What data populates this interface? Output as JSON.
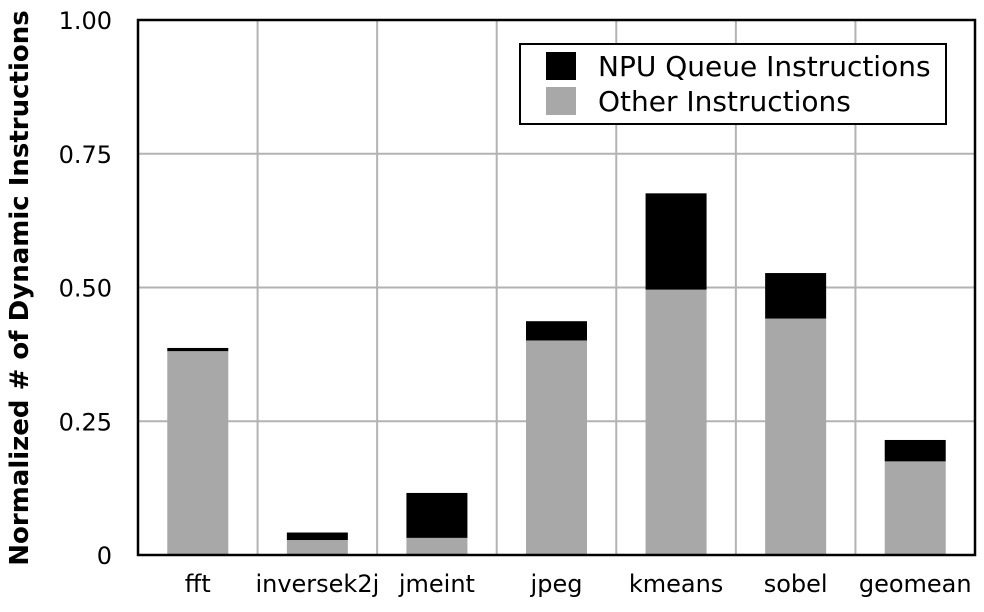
{
  "chart_data": {
    "type": "bar",
    "stacked": true,
    "categories": [
      "fft",
      "inversek2j",
      "jmeint",
      "jpeg",
      "kmeans",
      "sobel",
      "geomean"
    ],
    "series": [
      {
        "name": "Other Instructions",
        "values": [
          0.381,
          0.028,
          0.032,
          0.401,
          0.496,
          0.442,
          0.175
        ],
        "color": "#a8a8a8"
      },
      {
        "name": "NPU Queue Instructions",
        "values": [
          0.006,
          0.014,
          0.084,
          0.036,
          0.18,
          0.085,
          0.04
        ],
        "color": "#000000"
      }
    ],
    "title": "",
    "xlabel": "",
    "ylabel": "Normalized # of Dynamic Instructions",
    "ylim": [
      0,
      1.0
    ],
    "yticks": [
      0,
      0.25,
      0.5,
      0.75,
      1.0
    ],
    "ytick_labels": [
      "0",
      "0.25",
      "0.50",
      "0.75",
      "1.00"
    ],
    "grid": true,
    "legend_position": "top-right",
    "legend_order": [
      "NPU Queue Instructions",
      "Other Instructions"
    ]
  }
}
